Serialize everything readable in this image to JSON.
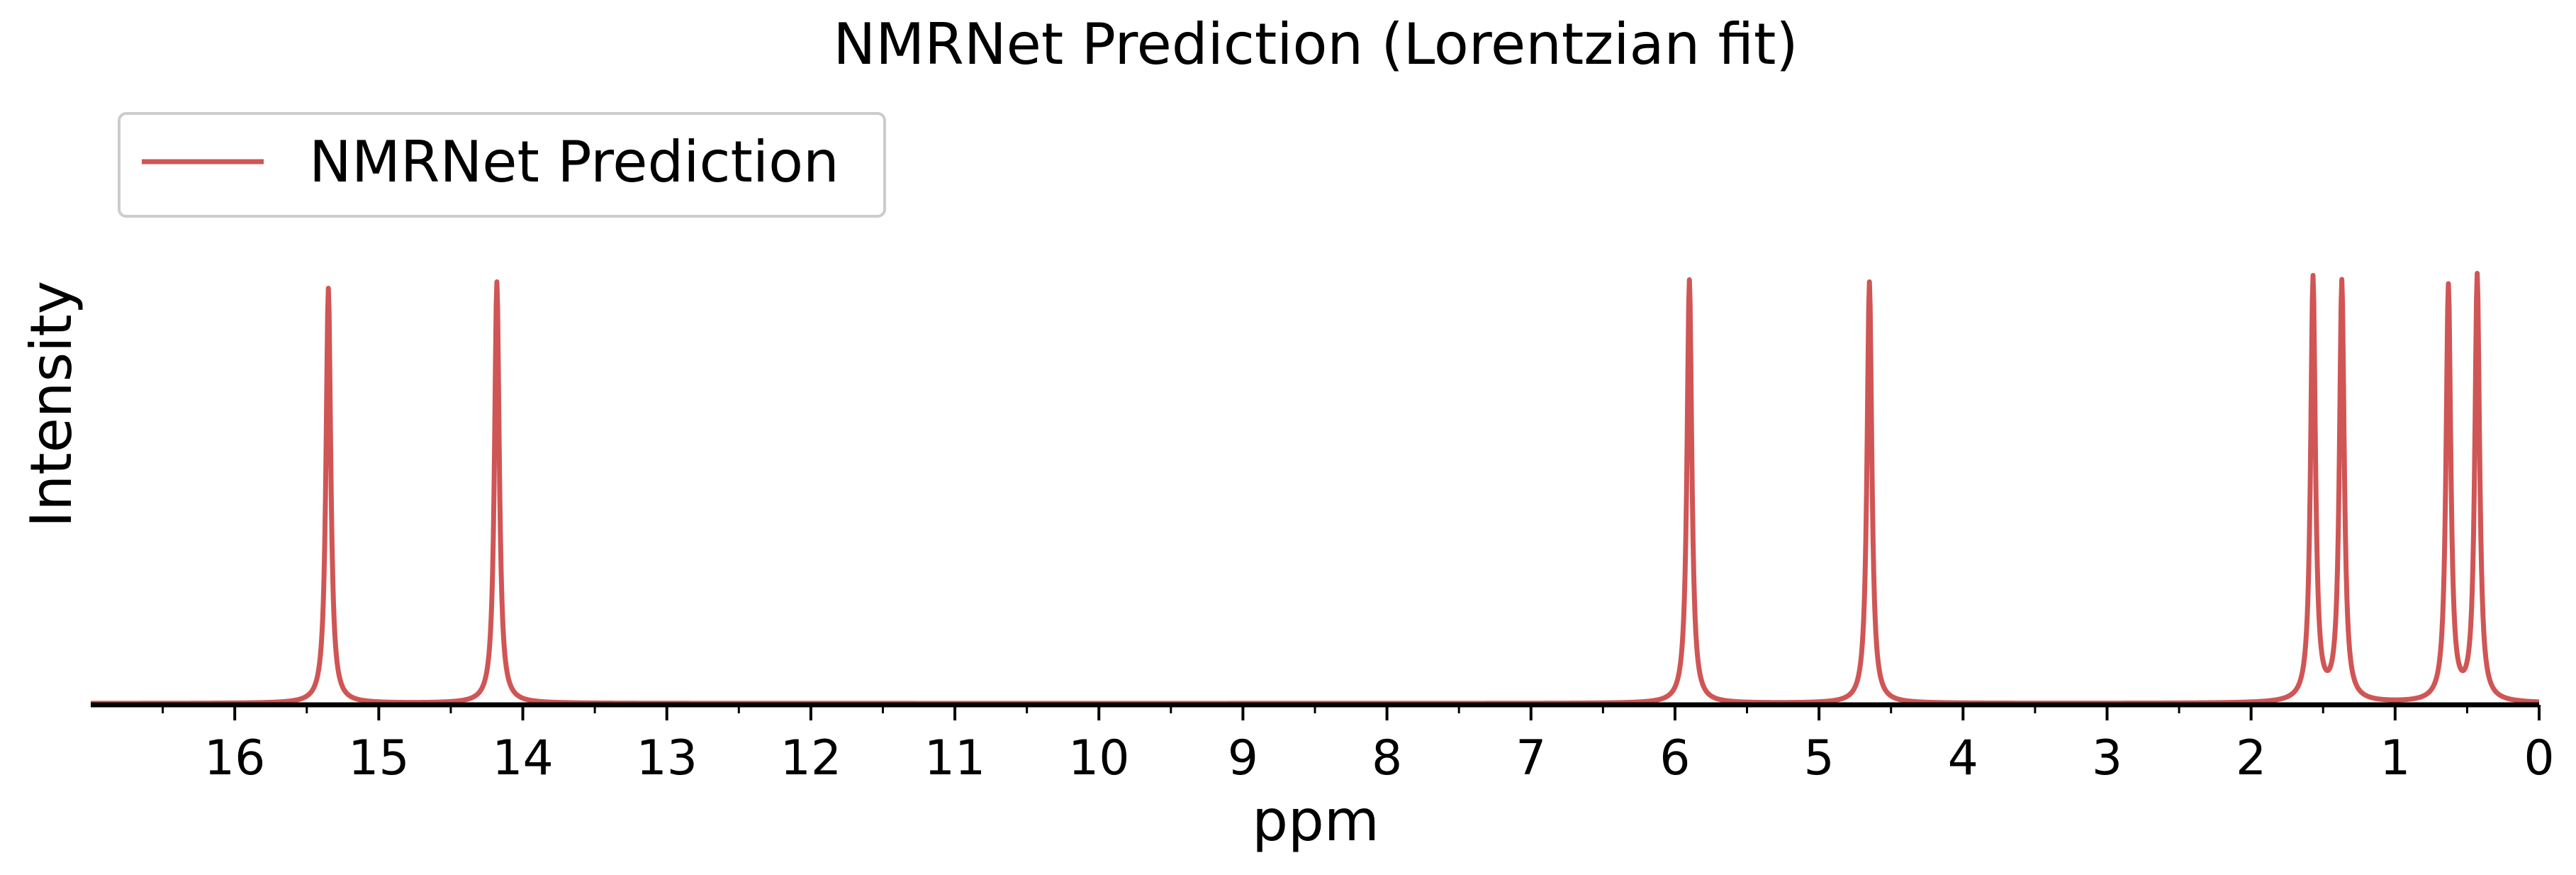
{
  "chart_data": {
    "type": "line",
    "title": "NMRNet Prediction (Lorentzian fit)",
    "xlabel": "ppm",
    "ylabel": "Intensity",
    "x_reversed": true,
    "xlim": [
      17,
      0
    ],
    "ylim": [
      0,
      1.4
    ],
    "x_ticks": [
      "16",
      "15",
      "14",
      "13",
      "12",
      "11",
      "10",
      "9",
      "8",
      "7",
      "6",
      "5",
      "4",
      "3",
      "2",
      "1",
      "0"
    ],
    "y_ticks_visible": false,
    "grid": false,
    "legend": {
      "position": "top-left",
      "entries": [
        "NMRNet Prediction"
      ]
    },
    "series": [
      {
        "name": "NMRNet Prediction",
        "color": "#d05555",
        "lineshape": "lorentzian",
        "peaks": [
          {
            "ppm": 15.35,
            "height": 0.985
          },
          {
            "ppm": 14.18,
            "height": 1.0
          },
          {
            "ppm": 5.9,
            "height": 1.005
          },
          {
            "ppm": 4.65,
            "height": 1.0
          },
          {
            "ppm": 1.57,
            "height": 1.005
          },
          {
            "ppm": 1.37,
            "height": 0.995
          },
          {
            "ppm": 0.63,
            "height": 0.985
          },
          {
            "ppm": 0.43,
            "height": 1.01
          }
        ]
      }
    ]
  }
}
